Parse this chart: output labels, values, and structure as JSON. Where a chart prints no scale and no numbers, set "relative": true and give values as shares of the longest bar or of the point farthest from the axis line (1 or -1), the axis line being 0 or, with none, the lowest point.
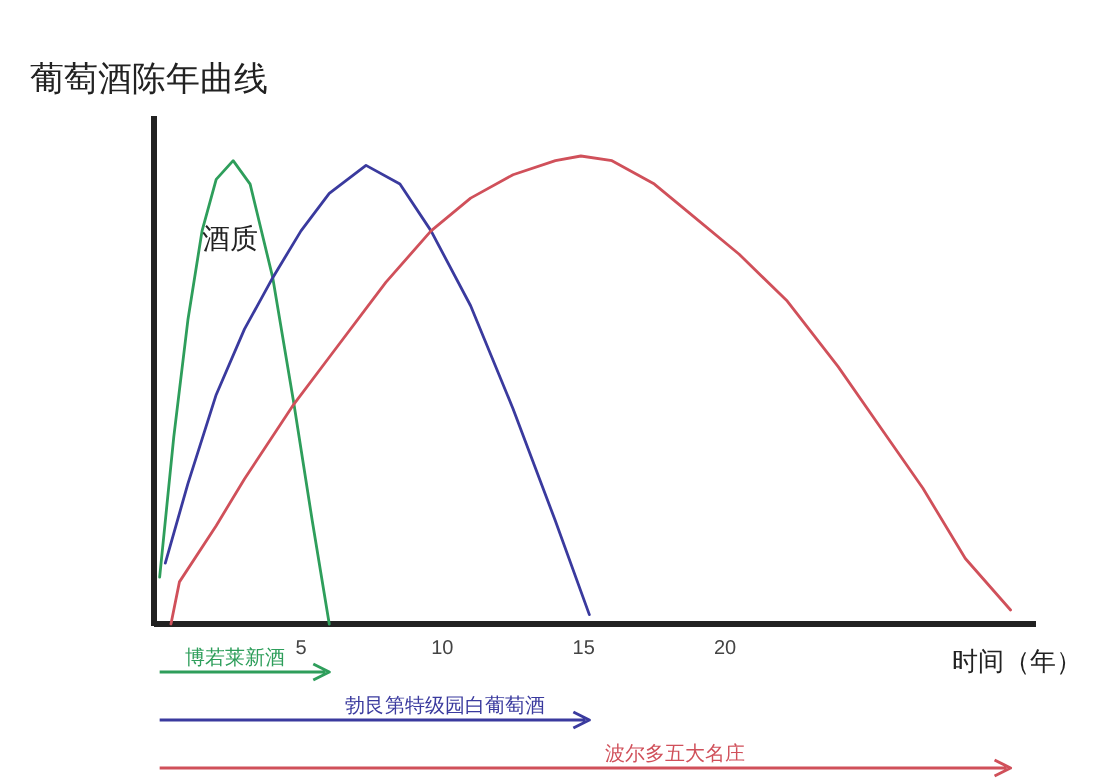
{
  "chart_data": {
    "type": "line",
    "relative": true,
    "title": "葡萄酒陈年曲线",
    "ylabel": "酒质",
    "xlabel": "时间（年）",
    "xlim": [
      -0.2,
      31
    ],
    "xticks": [
      5,
      10,
      15,
      20
    ],
    "grid": false,
    "legend": "bottom",
    "marker": "none",
    "line_style": "solid",
    "series": [
      {
        "name": "博若莱新酒",
        "color": "#2e9e5b",
        "x": [
          0,
          0.5,
          1,
          1.5,
          2,
          2.6,
          3.2,
          4,
          4.75,
          5.4,
          6
        ],
        "values": [
          0.1,
          0.4,
          0.65,
          0.84,
          0.95,
          0.99,
          0.94,
          0.74,
          0.47,
          0.22,
          0
        ]
      },
      {
        "name": "勃艮第特级园白葡萄酒",
        "color": "#3a3a9e",
        "x": [
          0.2,
          1,
          2,
          3,
          4,
          5,
          6,
          7.3,
          8.5,
          9.6,
          11,
          12.5,
          14,
          15.2
        ],
        "values": [
          0.13,
          0.3,
          0.49,
          0.63,
          0.74,
          0.84,
          0.92,
          0.98,
          0.94,
          0.84,
          0.68,
          0.46,
          0.22,
          0.02
        ]
      },
      {
        "name": "波尔多五大名庄",
        "color": "#d0505a",
        "x": [
          0.4,
          0.7,
          2,
          3,
          4.75,
          6,
          8,
          9.6,
          11,
          12.5,
          14,
          14.9,
          16,
          17.5,
          18.7,
          20.5,
          22.2,
          24,
          25.5,
          27,
          28.5,
          30.1
        ],
        "values": [
          0,
          0.09,
          0.21,
          0.31,
          0.47,
          0.57,
          0.73,
          0.84,
          0.91,
          0.96,
          0.99,
          1,
          0.99,
          0.94,
          0.88,
          0.79,
          0.69,
          0.55,
          0.42,
          0.29,
          0.14,
          0.03
        ]
      }
    ]
  }
}
